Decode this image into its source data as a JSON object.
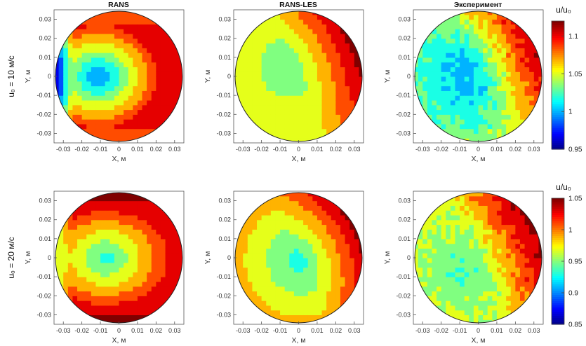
{
  "chart_data": [
    {
      "type": "heatmap",
      "title": "RANS",
      "row_label": "u₀ = 10 м/с",
      "xlabel": "X, м",
      "ylabel": "Y, м",
      "xticks": [
        "-0.03",
        "-0.02",
        "-0.01",
        "0",
        "0.01",
        "0.02",
        "0.03"
      ],
      "yticks": [
        "0.03",
        "0.02",
        "0.01",
        "0",
        "-0.01",
        "-0.02",
        "-0.03"
      ],
      "xlim": [
        -0.035,
        0.035
      ],
      "ylim": [
        -0.035,
        0.035
      ],
      "field": {
        "kind": "jet_core",
        "center": [
          -0.011,
          0.0
        ],
        "core_value": 0.99,
        "edge_value": 1.1,
        "top_bottom_value": 1.09,
        "left_edge_value": 0.96
      }
    },
    {
      "type": "heatmap",
      "title": "RANS-LES",
      "row_label": "u₀ = 10 м/с",
      "xlabel": "X, м",
      "ylabel": "Y, м",
      "xticks": [
        "-0.03",
        "-0.02",
        "-0.01",
        "0",
        "0.01",
        "0.02",
        "0.03"
      ],
      "yticks": [
        "0.03",
        "0.02",
        "0.01",
        "0",
        "-0.01",
        "-0.02",
        "-0.03"
      ],
      "xlim": [
        -0.035,
        0.035
      ],
      "ylim": [
        -0.035,
        0.035
      ],
      "field": {
        "kind": "gradient",
        "center": [
          -0.005,
          0.005
        ],
        "core_value": 1.03,
        "min_edge_value": 1.06,
        "max_edge_value": 1.12
      }
    },
    {
      "type": "heatmap",
      "title": "Эксперимент",
      "row_label": "u₀ = 10 м/с",
      "xlabel": "X, м",
      "ylabel": "Y, м",
      "xticks": [
        "-0.03",
        "-0.02",
        "-0.01",
        "0",
        "0.01",
        "0.02",
        "0.03"
      ],
      "yticks": [
        "0.03",
        "0.02",
        "0.01",
        "0",
        "-0.01",
        "-0.02",
        "-0.03"
      ],
      "xlim": [
        -0.035,
        0.035
      ],
      "ylim": [
        -0.035,
        0.035
      ],
      "field": {
        "kind": "noisy_gradient",
        "center": [
          -0.008,
          0.0
        ],
        "core_value": 1.0,
        "min_edge_value": 1.04,
        "max_edge_value": 1.11
      }
    },
    {
      "type": "heatmap",
      "title": "",
      "row_label": "u₀ = 20 м/с",
      "xlabel": "X, м",
      "ylabel": "Y, м",
      "xticks": [
        "-0.03",
        "-0.02",
        "-0.01",
        "0",
        "0.01",
        "0.02",
        "0.03"
      ],
      "yticks": [
        "0.03",
        "0.02",
        "0.01",
        "0",
        "-0.01",
        "-0.02",
        "-0.03"
      ],
      "xlim": [
        -0.035,
        0.035
      ],
      "ylim": [
        -0.035,
        0.035
      ],
      "field": {
        "kind": "jet_core",
        "center": [
          -0.007,
          0.0
        ],
        "core_value": 0.93,
        "edge_value": 1.02,
        "top_bottom_value": 1.05,
        "left_edge_value": 0.96
      }
    },
    {
      "type": "heatmap",
      "title": "",
      "row_label": "u₀ = 20 м/с",
      "xlabel": "X, м",
      "ylabel": "Y, м",
      "xticks": [
        "-0.03",
        "-0.02",
        "-0.01",
        "0",
        "0.01",
        "0.02",
        "0.03"
      ],
      "yticks": [
        "0.03",
        "0.02",
        "0.01",
        "0",
        "-0.01",
        "-0.02",
        "-0.03"
      ],
      "xlim": [
        -0.035,
        0.035
      ],
      "ylim": [
        -0.035,
        0.035
      ],
      "field": {
        "kind": "gradient",
        "center": [
          0.001,
          -0.001
        ],
        "core_value": 0.93,
        "min_edge_value": 0.99,
        "max_edge_value": 1.05
      }
    },
    {
      "type": "heatmap",
      "title": "",
      "row_label": "u₀ = 20 м/с",
      "xlabel": "X, м",
      "ylabel": "Y, м",
      "xticks": [
        "-0.03",
        "-0.02",
        "-0.01",
        "0",
        "0.01",
        "0.02",
        "0.03"
      ],
      "yticks": [
        "0.03",
        "0.02",
        "0.01",
        "0",
        "-0.01",
        "-0.02",
        "-0.03"
      ],
      "xlim": [
        -0.035,
        0.035
      ],
      "ylim": [
        -0.035,
        0.035
      ],
      "field": {
        "kind": "noisy_gradient",
        "center": [
          -0.01,
          -0.006
        ],
        "core_value": 0.94,
        "min_edge_value": 0.97,
        "max_edge_value": 1.05
      }
    }
  ],
  "colorbars": [
    {
      "title": "u/u₀",
      "ticks": [
        "1.1",
        "1.05",
        "1",
        "0.95"
      ],
      "min": 0.95,
      "max": 1.12
    },
    {
      "title": "u/u₀",
      "ticks": [
        "1.05",
        "1",
        "0.95",
        "0.9",
        "0.85"
      ],
      "min": 0.85,
      "max": 1.05
    }
  ],
  "colormap": "jet"
}
